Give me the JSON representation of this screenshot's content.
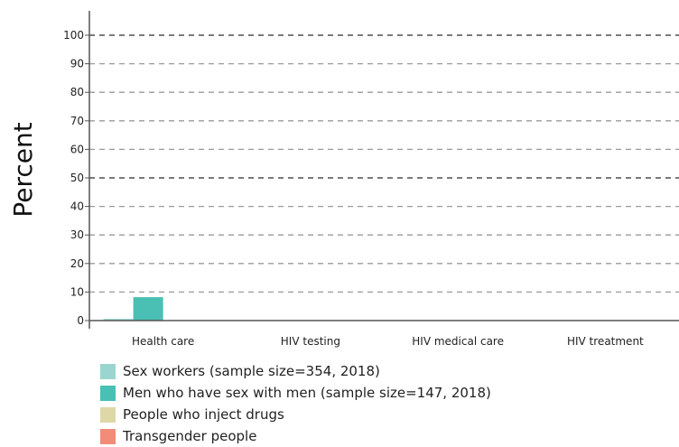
{
  "chart_data": {
    "type": "bar",
    "title": "",
    "xlabel": "",
    "ylabel": "Percent",
    "ylim": [
      0,
      100
    ],
    "yticks": [
      0,
      10,
      20,
      30,
      40,
      50,
      60,
      70,
      80,
      90,
      100
    ],
    "grid": true,
    "legend_position": "bottom-left",
    "categories": [
      "Health care",
      "HIV testing",
      "HIV medical care",
      "HIV treatment"
    ],
    "series": [
      {
        "name": "Sex workers (sample size=354, 2018)",
        "color": "#9ad6cf",
        "values": [
          0.6,
          null,
          null,
          null
        ]
      },
      {
        "name": "Men who have sex with men (sample size=147, 2018)",
        "color": "#4abfb4",
        "values": [
          8.2,
          null,
          null,
          null
        ]
      },
      {
        "name": "People who inject drugs",
        "color": "#ddd8a6",
        "values": [
          null,
          null,
          null,
          null
        ]
      },
      {
        "name": "Transgender people",
        "color": "#f28c78",
        "values": [
          null,
          null,
          null,
          null
        ]
      }
    ]
  }
}
